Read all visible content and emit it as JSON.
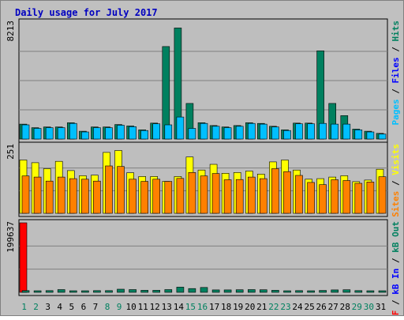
{
  "colors": {
    "background": "#C0C0C0",
    "panel": "#BEBEBE",
    "title": "#0000C0",
    "hits": "#00805F",
    "files": "#00BFFF",
    "pages": "#00BFFF",
    "visits": "#FFFF00",
    "sites": "#FF8000",
    "kb_f": "#FF0000",
    "kb_in": "#0000FF",
    "kb_out": "#00805F",
    "weekend": "#00805F",
    "weekday": "#000000"
  },
  "chart_data": {
    "type": "bar",
    "title": "Daily usage for July 2017",
    "categories": [
      "1",
      "2",
      "3",
      "4",
      "5",
      "6",
      "7",
      "8",
      "9",
      "10",
      "11",
      "12",
      "13",
      "14",
      "15",
      "16",
      "17",
      "18",
      "19",
      "20",
      "21",
      "22",
      "23",
      "24",
      "25",
      "26",
      "27",
      "28",
      "29",
      "30",
      "31"
    ],
    "weekend_days": [
      1,
      2,
      8,
      9,
      15,
      16,
      22,
      23,
      29,
      30
    ],
    "panels": [
      {
        "id": "hits",
        "ymax_label": "8213",
        "ylim": [
          0,
          8213
        ],
        "legend": [
          {
            "text": "Pages",
            "color": "#00BFFF"
          },
          {
            "text": " / ",
            "color": "#000000"
          },
          {
            "text": "Files",
            "color": "#0000FF"
          },
          {
            "text": " / ",
            "color": "#000000"
          },
          {
            "text": "Hits",
            "color": "#00805F"
          }
        ],
        "series": [
          {
            "name": "Hits",
            "color": "#00805F",
            "values": [
              1050,
              800,
              850,
              850,
              1150,
              550,
              850,
              850,
              1020,
              920,
              650,
              1120,
              6500,
              7800,
              2500,
              1150,
              950,
              850,
              950,
              1150,
              1100,
              900,
              650,
              1120,
              1120,
              6200,
              2500,
              1650,
              700,
              550,
              400
            ]
          },
          {
            "name": "Files",
            "color": "#00BFFF",
            "values": [
              1000,
              750,
              800,
              800,
              1100,
              500,
              800,
              800,
              970,
              870,
              600,
              1070,
              1000,
              1550,
              750,
              1100,
              900,
              800,
              900,
              1100,
              1050,
              850,
              600,
              1070,
              1070,
              1100,
              1050,
              1050,
              650,
              500,
              350
            ]
          }
        ]
      },
      {
        "id": "visits",
        "ymax_label": "251",
        "ylim": [
          0,
          251
        ],
        "legend": [
          {
            "text": "Sites",
            "color": "#FF8000"
          },
          {
            "text": " / ",
            "color": "#000000"
          },
          {
            "text": "Visits",
            "color": "#FFFF00"
          }
        ],
        "series": [
          {
            "name": "Visits",
            "color": "#FFFF00",
            "values": [
              197,
              187,
              165,
              192,
              158,
              139,
              141,
              225,
              232,
              150,
              136,
              136,
              118,
              136,
              208,
              160,
              181,
              148,
              151,
              156,
              145,
              190,
              197,
              160,
              126,
              128,
              134,
              139,
              117,
              123,
              163
            ]
          },
          {
            "name": "Sites",
            "color": "#FF8000",
            "values": [
              138,
              134,
              119,
              134,
              128,
              126,
              119,
              175,
              173,
              126,
              118,
              126,
              118,
              129,
              151,
              138,
              147,
              124,
              125,
              134,
              128,
              165,
              154,
              140,
              114,
              106,
              124,
              121,
              111,
              116,
              135
            ]
          }
        ]
      },
      {
        "id": "kbytes",
        "ymax_label": "199637",
        "ylim": [
          0,
          199637
        ],
        "legend": [
          {
            "text": "kB F",
            "color": "#FF0000"
          },
          {
            "text": " / ",
            "color": "#000000"
          },
          {
            "text": "kB In",
            "color": "#0000FF"
          },
          {
            "text": " / ",
            "color": "#000000"
          },
          {
            "text": "kB Out",
            "color": "#00805F"
          }
        ],
        "series": [
          {
            "name": "kB F",
            "color": "#FF0000",
            "values": [
              199637,
              0,
              0,
              0,
              0,
              0,
              0,
              0,
              0,
              0,
              0,
              0,
              0,
              0,
              0,
              0,
              0,
              0,
              0,
              0,
              0,
              0,
              0,
              0,
              0,
              0,
              0,
              0,
              0,
              0,
              0
            ]
          },
          {
            "name": "kB Out",
            "color": "#00805F",
            "values": [
              5000,
              4500,
              5000,
              8000,
              4000,
              4000,
              5000,
              5000,
              9000,
              8000,
              6000,
              6000,
              8000,
              15000,
              11000,
              14000,
              7000,
              7000,
              7500,
              8000,
              7500,
              6000,
              3500,
              5000,
              4500,
              5500,
              7000,
              7500,
              5000,
              3000,
              3500
            ]
          }
        ]
      }
    ]
  }
}
